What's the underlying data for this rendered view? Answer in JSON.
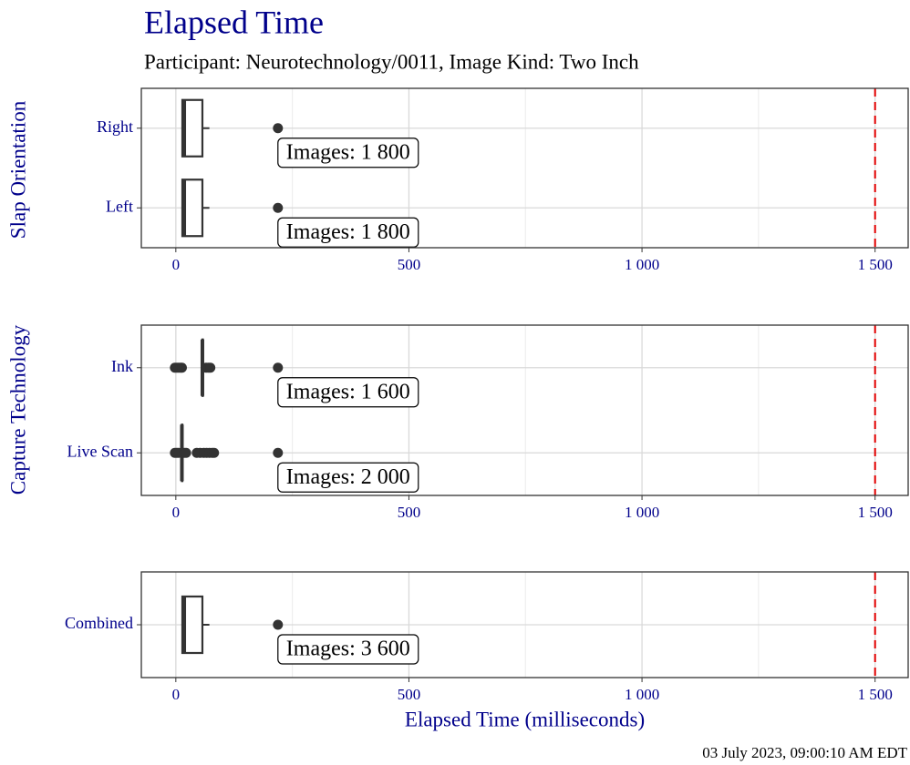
{
  "title": "Elapsed Time",
  "subtitle": "Participant: Neurotechnology/0011, Image Kind: Two Inch",
  "footer": "03 July 2023, 09:00:10 AM EDT",
  "chart_data": [
    {
      "type": "box",
      "y_label": "Slap Orientation",
      "categories": [
        "Right",
        "Left"
      ],
      "boxes": [
        {
          "min": 12,
          "q1": 14,
          "median": 18,
          "q3": 57,
          "max": 72,
          "outliers": [
            219
          ],
          "count": 1800,
          "count_label": "Images: 1 800"
        },
        {
          "min": 12,
          "q1": 14,
          "median": 18,
          "q3": 57,
          "max": 72,
          "outliers": [
            219
          ],
          "count": 1800,
          "count_label": "Images: 1 800"
        }
      ],
      "xlim": [
        -74,
        1571
      ],
      "xticks": [
        0,
        500,
        {
          "value": 1000,
          "label": "1 000"
        },
        {
          "value": 1500,
          "label": "1 500"
        }
      ],
      "xminor": [
        250,
        750,
        1250
      ],
      "reference_line": 1500,
      "reference_color": "#e00000",
      "box_color": "#333333",
      "grid": true
    },
    {
      "type": "box",
      "y_label": "Capture Technology",
      "categories": [
        "Ink",
        "Live Scan"
      ],
      "boxes": [
        {
          "min": 56,
          "q1": 57,
          "median": 57,
          "q3": 58,
          "max": 58,
          "outliers": [
            -2,
            2,
            6,
            10,
            13,
            65,
            70,
            74,
            219
          ],
          "count": 1600,
          "count_label": "Images: 1 600"
        },
        {
          "min": 12,
          "q1": 13,
          "median": 13,
          "q3": 14,
          "max": 15,
          "outliers": [
            -2,
            2,
            6,
            18,
            22,
            45,
            52,
            60,
            66,
            72,
            78,
            82,
            219
          ],
          "count": 2000,
          "count_label": "Images: 2 000"
        }
      ],
      "xlim": [
        -74,
        1571
      ],
      "xticks": [
        0,
        500,
        {
          "value": 1000,
          "label": "1 000"
        },
        {
          "value": 1500,
          "label": "1 500"
        }
      ],
      "xminor": [
        250,
        750,
        1250
      ],
      "reference_line": 1500,
      "reference_color": "#e00000",
      "box_color": "#333333",
      "grid": true
    },
    {
      "type": "box",
      "x_label": "Elapsed Time (milliseconds)",
      "categories": [
        "Combined"
      ],
      "boxes": [
        {
          "min": 12,
          "q1": 14,
          "median": 18,
          "q3": 57,
          "max": 72,
          "outliers": [
            219
          ],
          "count": 3600,
          "count_label": "Images: 3 600"
        }
      ],
      "xlim": [
        -74,
        1571
      ],
      "xticks": [
        0,
        500,
        {
          "value": 1000,
          "label": "1 000"
        },
        {
          "value": 1500,
          "label": "1 500"
        }
      ],
      "xminor": [
        250,
        750,
        1250
      ],
      "reference_line": 1500,
      "reference_color": "#e00000",
      "box_color": "#333333",
      "grid": true
    }
  ]
}
